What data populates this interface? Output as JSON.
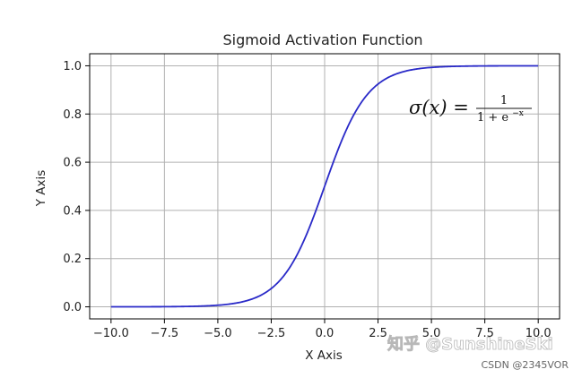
{
  "chart_data": {
    "type": "line",
    "title": "Sigmoid Activation Function",
    "xlabel": "X Axis",
    "ylabel": "Y Axis",
    "xlim": [
      -11.0,
      11.0
    ],
    "ylim": [
      -0.05,
      1.05
    ],
    "x_ticks": [
      -10.0,
      -7.5,
      -5.0,
      -2.5,
      0.0,
      2.5,
      5.0,
      7.5,
      10.0
    ],
    "x_tick_labels": [
      "−10.0",
      "−7.5",
      "−5.0",
      "−2.5",
      "0.0",
      "2.5",
      "5.0",
      "7.5",
      "10.0"
    ],
    "y_ticks": [
      0.0,
      0.2,
      0.4,
      0.6,
      0.8,
      1.0
    ],
    "y_tick_labels": [
      "0.0",
      "0.2",
      "0.4",
      "0.6",
      "0.8",
      "1.0"
    ],
    "grid": true,
    "series": [
      {
        "color": "#2a2ac8",
        "function": "1/(1+exp(-x))",
        "x_range": [
          -10,
          10
        ],
        "x": [
          -10,
          -9,
          -8,
          -7,
          -6,
          -5,
          -4,
          -3,
          -2.5,
          -2,
          -1.5,
          -1,
          -0.5,
          0,
          0.5,
          1,
          1.5,
          2,
          2.5,
          3,
          4,
          5,
          6,
          7,
          8,
          9,
          10
        ],
        "values": [
          0.0,
          0.0001,
          0.0003,
          0.0009,
          0.0025,
          0.0067,
          0.018,
          0.0474,
          0.0759,
          0.1192,
          0.1824,
          0.2689,
          0.3775,
          0.5,
          0.6225,
          0.7311,
          0.8176,
          0.8808,
          0.9241,
          0.9526,
          0.982,
          0.9933,
          0.9975,
          0.9991,
          0.9997,
          0.9999,
          1.0
        ]
      }
    ],
    "annotations": [
      {
        "lhs": "σ(x) = ",
        "numerator": "1",
        "denominator_base": "1 + e",
        "denominator_exponent": "−x"
      }
    ]
  },
  "watermark": {
    "text": "知乎 @SunshineSki",
    "credit": "CSDN @2345VOR"
  }
}
